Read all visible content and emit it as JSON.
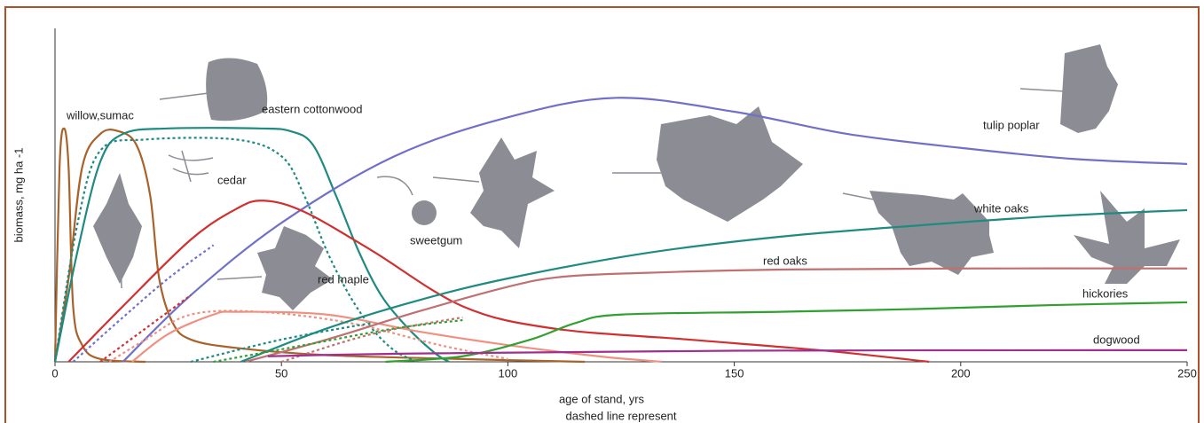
{
  "chart_data": {
    "type": "line",
    "x_label": "age of stand, yrs",
    "x_label_note": "dashed line represent",
    "y_label": "biomass, mg ha -1",
    "xlim": [
      0,
      250
    ],
    "xticks": [
      0,
      50,
      100,
      150,
      200,
      250
    ],
    "ylim": [
      0,
      6
    ],
    "annotations": [
      "willow,sumac",
      "eastern cottonwood",
      "cedar",
      "red maple",
      "sweetgum",
      "red oaks",
      "tulip poplar",
      "white oaks",
      "hickories",
      "dogwood"
    ],
    "series": [
      {
        "color": "#a8622a",
        "dashed": false,
        "x": [
          0,
          1,
          2,
          3,
          4,
          6,
          10,
          20
        ],
        "values": [
          0,
          3.5,
          4.2,
          3.5,
          1.0,
          0.3,
          0.05,
          0
        ]
      },
      {
        "color": "#a8622a",
        "dashed": false,
        "x": [
          0,
          3,
          6,
          10,
          14,
          18,
          21,
          23,
          26,
          30,
          40,
          60,
          90,
          117
        ],
        "values": [
          0,
          1.5,
          3.5,
          4.1,
          4.15,
          3.9,
          3.0,
          1.5,
          0.7,
          0.4,
          0.25,
          0.12,
          0.05,
          0
        ]
      },
      {
        "color": "#1f8a80",
        "dashed": false,
        "x": [
          0,
          5,
          10,
          15,
          25,
          45,
          52,
          57,
          62,
          67,
          72,
          78,
          84,
          87
        ],
        "values": [
          0,
          2.0,
          3.6,
          4.1,
          4.2,
          4.2,
          4.15,
          3.9,
          3.0,
          2.0,
          1.2,
          0.6,
          0.15,
          0
        ]
      },
      {
        "color": "#1f8a80",
        "dashed": true,
        "x": [
          0,
          5,
          10,
          20,
          40,
          50,
          55,
          60,
          65,
          70,
          75,
          80
        ],
        "values": [
          0,
          2.5,
          3.8,
          4.0,
          4.0,
          3.7,
          3.0,
          2.0,
          1.2,
          0.6,
          0.2,
          0
        ]
      },
      {
        "color": "#7070c8",
        "dashed": false,
        "x": [
          15,
          30,
          50,
          75,
          100,
          124,
          150,
          175,
          200,
          225,
          250
        ],
        "values": [
          0,
          1.2,
          2.5,
          3.7,
          4.4,
          4.75,
          4.5,
          4.1,
          3.85,
          3.65,
          3.56
        ]
      },
      {
        "color": "#7070c8",
        "dashed": true,
        "x": [
          4,
          15,
          25,
          35
        ],
        "values": [
          0,
          0.8,
          1.5,
          2.1
        ]
      },
      {
        "color": "#d03030",
        "dashed": false,
        "x": [
          3,
          15,
          30,
          40,
          46,
          55,
          70,
          90,
          110,
          140,
          170,
          193
        ],
        "values": [
          0,
          1.0,
          2.2,
          2.75,
          2.9,
          2.7,
          2.0,
          1.0,
          0.6,
          0.4,
          0.2,
          0
        ]
      },
      {
        "color": "#d03030",
        "dashed": true,
        "x": [
          10,
          20,
          30
        ],
        "values": [
          0,
          0.6,
          1.2
        ]
      },
      {
        "color": "#f09080",
        "dashed": false,
        "x": [
          17,
          25,
          35,
          40,
          60,
          80,
          100,
          120,
          134
        ],
        "values": [
          0,
          0.5,
          0.85,
          0.9,
          0.85,
          0.55,
          0.3,
          0.1,
          0
        ]
      },
      {
        "color": "#f09080",
        "dashed": true,
        "x": [
          12,
          20,
          30,
          45,
          65,
          85,
          100
        ],
        "values": [
          0,
          0.4,
          0.85,
          0.9,
          0.7,
          0.3,
          0.05
        ]
      },
      {
        "color": "#c07070",
        "dashed": false,
        "x": [
          42,
          60,
          80,
          100,
          112,
          130,
          160,
          200,
          250
        ],
        "values": [
          0,
          0.4,
          0.9,
          1.35,
          1.53,
          1.6,
          1.66,
          1.68,
          1.68
        ]
      },
      {
        "color": "#c07070",
        "dashed": true,
        "x": [
          50,
          70,
          90
        ],
        "values": [
          0,
          0.5,
          0.8
        ]
      },
      {
        "color": "#1f8a80",
        "dashed": false,
        "x": [
          41,
          60,
          80,
          100,
          130,
          160,
          190,
          220,
          250
        ],
        "values": [
          0,
          0.6,
          1.1,
          1.5,
          1.95,
          2.25,
          2.45,
          2.62,
          2.73
        ]
      },
      {
        "color": "#1f8a80",
        "dashed": true,
        "x": [
          30,
          50,
          70
        ],
        "values": [
          0,
          0.4,
          0.7
        ]
      },
      {
        "color": "#30a030",
        "dashed": false,
        "x": [
          73,
          90,
          105,
          115,
          125,
          160,
          190,
          220,
          250
        ],
        "values": [
          0,
          0.1,
          0.4,
          0.7,
          0.85,
          0.9,
          0.95,
          1.02,
          1.07
        ]
      },
      {
        "color": "#30a030",
        "dashed": true,
        "x": [
          35,
          55,
          75,
          90
        ],
        "values": [
          0,
          0.3,
          0.6,
          0.75
        ]
      },
      {
        "color": "#a03090",
        "dashed": false,
        "x": [
          47,
          80,
          150,
          250
        ],
        "values": [
          0.1,
          0.15,
          0.2,
          0.21
        ]
      }
    ]
  }
}
